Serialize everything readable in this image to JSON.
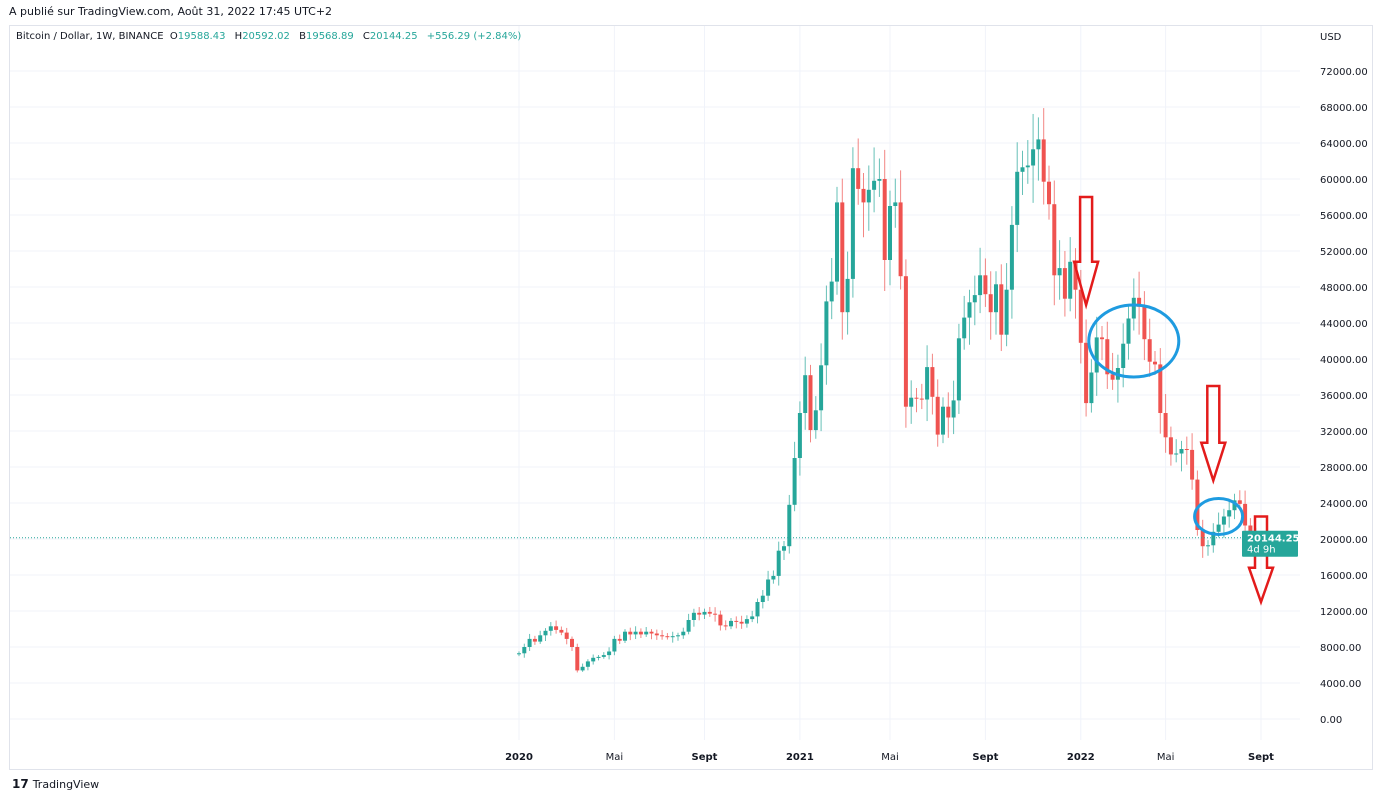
{
  "published": "A publié sur TradingView.com, Août 31, 2022 17:45 UTC+2",
  "legend": {
    "symbol": "Bitcoin / Dollar, 1W, BINANCE",
    "o_label": "O",
    "o": "19588.43",
    "h_label": "H",
    "h": "20592.02",
    "l_label": "B",
    "l": "19568.89",
    "c_label": "C",
    "c": "20144.25",
    "change": "+556.29 (+2.84%)"
  },
  "currency": "USD",
  "last_price": {
    "value": "20144.25",
    "countdown": "4d 9h"
  },
  "footer": {
    "brand": "TradingView",
    "logo_text": "17"
  },
  "colors": {
    "up": "#26a69a",
    "down": "#ef5350",
    "arrow": "#e31b1b",
    "circle": "#1e9be0"
  },
  "chart_data": {
    "type": "candlestick",
    "interval": "1W",
    "y_ticks": [
      "0.00",
      "4000.00",
      "8000.00",
      "12000.00",
      "16000.00",
      "20000.00",
      "24000.00",
      "28000.00",
      "32000.00",
      "36000.00",
      "40000.00",
      "44000.00",
      "48000.00",
      "52000.00",
      "56000.00",
      "60000.00",
      "64000.00",
      "68000.00",
      "72000.00"
    ],
    "ylim": [
      0,
      72000
    ],
    "x_ticks": [
      {
        "label": "2020",
        "week": 0
      },
      {
        "label": "Mai",
        "week": 18
      },
      {
        "label": "Sept",
        "week": 35
      },
      {
        "label": "2021",
        "week": 53
      },
      {
        "label": "Mai",
        "week": 70
      },
      {
        "label": "Sept",
        "week": 88
      },
      {
        "label": "2022",
        "week": 106
      },
      {
        "label": "Mai",
        "week": 122
      },
      {
        "label": "Sept",
        "week": 140
      }
    ],
    "first_open_k": 7.2,
    "closes_k": [
      7.3,
      8.0,
      8.9,
      8.6,
      9.3,
      9.8,
      10.3,
      9.9,
      9.6,
      8.9,
      8.0,
      5.4,
      5.8,
      6.4,
      6.8,
      6.9,
      7.1,
      7.5,
      8.9,
      8.7,
      9.7,
      9.4,
      9.7,
      9.4,
      9.7,
      9.5,
      9.3,
      9.2,
      9.1,
      9.2,
      9.3,
      9.7,
      11.0,
      11.8,
      11.6,
      11.9,
      11.7,
      11.6,
      10.4,
      10.3,
      10.9,
      10.8,
      10.6,
      11.1,
      11.4,
      13.0,
      13.7,
      15.5,
      15.9,
      18.7,
      19.2,
      23.8,
      29.0,
      34.0,
      38.2,
      32.1,
      34.3,
      39.3,
      46.4,
      48.6,
      57.4,
      45.2,
      48.9,
      61.2,
      58.9,
      57.4,
      58.8,
      59.8,
      60.0,
      51.0,
      57.0,
      57.4,
      49.2,
      34.7,
      35.7,
      35.6,
      35.5,
      39.1,
      35.8,
      31.6,
      34.7,
      33.5,
      35.4,
      42.3,
      44.6,
      46.3,
      47.1,
      49.3,
      47.2,
      45.2,
      48.3,
      42.7,
      47.7,
      54.9,
      60.8,
      61.3,
      61.5,
      63.3,
      64.4,
      59.7,
      57.2,
      49.3,
      50.1,
      46.7,
      50.8,
      47.7,
      41.8,
      35.1,
      38.5,
      42.4,
      42.2,
      38.3,
      37.7,
      39.0,
      41.7,
      44.5,
      46.8,
      45.8,
      42.2,
      39.7,
      39.4,
      34.0,
      31.3,
      29.4,
      29.5,
      30.0,
      29.9,
      26.6,
      21.0,
      19.2,
      19.3,
      20.8,
      21.6,
      22.5,
      23.2,
      24.3,
      23.9,
      21.5,
      19.59,
      20.14
    ],
    "annotations": [
      {
        "type": "arrow-down",
        "from_week": 107,
        "from_price": 58000,
        "to_price": 46000
      },
      {
        "type": "ellipse",
        "center_week": 116,
        "center_price": 42000
      },
      {
        "type": "arrow-down",
        "from_week": 131,
        "from_price": 37000,
        "to_price": 26500
      },
      {
        "type": "ellipse",
        "center_week": 132,
        "center_price": 22500
      },
      {
        "type": "arrow-down",
        "from_week": 140,
        "from_price": 22500,
        "to_price": 13000
      }
    ]
  }
}
